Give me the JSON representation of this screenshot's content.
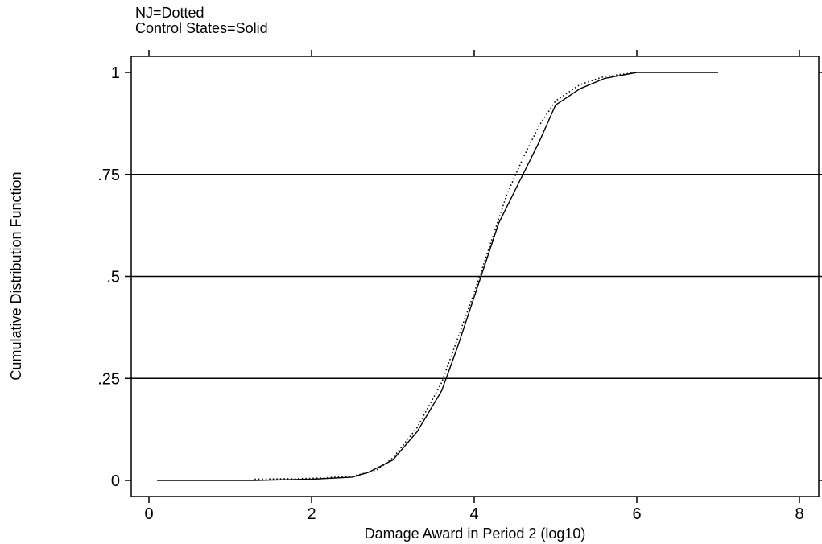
{
  "legend_notes": {
    "line1": "NJ=Dotted",
    "line2": "Control States=Solid"
  },
  "chart_data": {
    "type": "line",
    "title": "",
    "xlabel": "Damage Award in Period 2 (log10)",
    "ylabel": "Cumulative Distribution Function",
    "xlim": [
      0,
      8
    ],
    "ylim": [
      0,
      1
    ],
    "x_ticks": [
      0,
      2,
      4,
      6,
      8
    ],
    "x_tick_labels": [
      "0",
      "2",
      "4",
      "6",
      "8"
    ],
    "y_ticks": [
      0,
      0.25,
      0.5,
      0.75,
      1
    ],
    "y_tick_labels": [
      "0",
      ".25",
      ".5",
      ".75",
      "1"
    ],
    "grid": {
      "horizontal": true,
      "vertical": false
    },
    "series": [
      {
        "name": "Control States",
        "style": "solid",
        "color": "#000000",
        "points": [
          [
            0.1,
            0.0
          ],
          [
            1.3,
            0.0
          ],
          [
            2.0,
            0.003
          ],
          [
            2.5,
            0.008
          ],
          [
            2.7,
            0.02
          ],
          [
            3.0,
            0.05
          ],
          [
            3.3,
            0.12
          ],
          [
            3.6,
            0.22
          ],
          [
            3.8,
            0.33
          ],
          [
            4.0,
            0.45
          ],
          [
            4.15,
            0.54
          ],
          [
            4.3,
            0.63
          ],
          [
            4.5,
            0.71
          ],
          [
            4.8,
            0.83
          ],
          [
            5.0,
            0.92
          ],
          [
            5.3,
            0.96
          ],
          [
            5.6,
            0.985
          ],
          [
            6.0,
            1.0
          ],
          [
            7.0,
            1.0
          ]
        ]
      },
      {
        "name": "NJ",
        "style": "dotted",
        "color": "#000000",
        "points": [
          [
            1.3,
            0.003
          ],
          [
            2.0,
            0.005
          ],
          [
            2.5,
            0.01
          ],
          [
            2.8,
            0.025
          ],
          [
            3.0,
            0.055
          ],
          [
            3.3,
            0.13
          ],
          [
            3.6,
            0.24
          ],
          [
            3.8,
            0.35
          ],
          [
            4.0,
            0.46
          ],
          [
            4.2,
            0.58
          ],
          [
            4.4,
            0.7
          ],
          [
            4.6,
            0.79
          ],
          [
            4.8,
            0.87
          ],
          [
            5.0,
            0.93
          ],
          [
            5.3,
            0.97
          ],
          [
            5.6,
            0.99
          ],
          [
            6.0,
            1.0
          ]
        ]
      }
    ]
  }
}
